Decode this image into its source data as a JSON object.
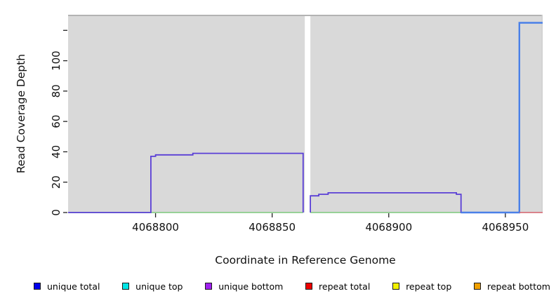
{
  "chart_data": {
    "type": "line",
    "title": "",
    "xlabel": "Coordinate in Reference Genome",
    "ylabel": "Read Coverage Depth",
    "xlim": [
      4068762.5,
      4068966
    ],
    "ylim": [
      0,
      130.3
    ],
    "xticks": [
      {
        "value": 4068800,
        "label": "4068800"
      },
      {
        "value": 4068850,
        "label": "4068850"
      },
      {
        "value": 4068900,
        "label": "4068900"
      },
      {
        "value": 4068950,
        "label": "4068950"
      }
    ],
    "yticks": [
      {
        "value": 0,
        "label": "0"
      },
      {
        "value": 20,
        "label": "20"
      },
      {
        "value": 40,
        "label": "40"
      },
      {
        "value": 60,
        "label": "60"
      },
      {
        "value": 80,
        "label": "80"
      },
      {
        "value": 100,
        "label": "100"
      },
      {
        "value": 120,
        "label": ""
      }
    ],
    "panel_bg": "#d9d9d9",
    "panel_top_edge": "#b3b3b3",
    "panel_right_edge": "#cfcfcf",
    "gap_regions": [
      [
        4068864,
        4068866.4
      ]
    ],
    "series": [
      {
        "id": "baseline-green",
        "name": "zero-coverage baseline",
        "color": "#7cc87c",
        "width": 1.6,
        "segments": [
          [
            [
              4068762.5,
              0
            ],
            [
              4068863.3,
              0
            ]
          ],
          [
            [
              4068866.4,
              0
            ],
            [
              4068931,
              0
            ]
          ]
        ]
      },
      {
        "id": "unique-bottom",
        "name": "unique bottom",
        "color": "#5a3fd6",
        "width": 1.8,
        "segments": [
          [
            [
              4068762.5,
              0
            ],
            [
              4068798,
              0
            ],
            [
              4068798,
              37
            ],
            [
              4068800,
              37
            ],
            [
              4068800,
              38
            ],
            [
              4068816,
              38
            ],
            [
              4068816,
              39
            ],
            [
              4068863.3,
              39
            ],
            [
              4068863.3,
              0
            ]
          ],
          [
            [
              4068866.4,
              0
            ],
            [
              4068866.4,
              11
            ],
            [
              4068870,
              11
            ],
            [
              4068870,
              12
            ],
            [
              4068874,
              12
            ],
            [
              4068874,
              13
            ],
            [
              4068929,
              13
            ],
            [
              4068929,
              12
            ],
            [
              4068931,
              12
            ],
            [
              4068931,
              0
            ],
            [
              4068956,
              0
            ]
          ]
        ]
      },
      {
        "id": "unique-total",
        "name": "unique total",
        "color": "#4a80e8",
        "width": 2.4,
        "segments": [
          [
            [
              4068931,
              0
            ],
            [
              4068956,
              0
            ],
            [
              4068956,
              125
            ],
            [
              4068966,
              125
            ]
          ]
        ]
      },
      {
        "id": "repeat-total",
        "name": "repeat total",
        "color": "#d4606c",
        "width": 1.6,
        "segments": [
          [
            [
              4068956,
              0
            ],
            [
              4068966,
              0
            ]
          ]
        ]
      }
    ]
  },
  "legend": {
    "items": [
      {
        "label": "unique total",
        "color": "#0000ee"
      },
      {
        "label": "unique top",
        "color": "#00e6e6"
      },
      {
        "label": "unique bottom",
        "color": "#a020f0"
      },
      {
        "label": "repeat total",
        "color": "#ee0000"
      },
      {
        "label": "repeat top",
        "color": "#f2f200"
      },
      {
        "label": "repeat bottom",
        "color": "#f0a000"
      }
    ]
  }
}
